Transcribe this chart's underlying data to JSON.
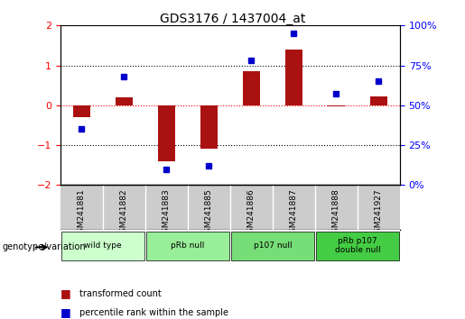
{
  "title": "GDS3176 / 1437004_at",
  "samples": [
    "GSM241881",
    "GSM241882",
    "GSM241883",
    "GSM241885",
    "GSM241886",
    "GSM241887",
    "GSM241888",
    "GSM241927"
  ],
  "transformed_counts": [
    -0.3,
    0.2,
    -1.4,
    -1.1,
    0.85,
    1.4,
    -0.02,
    0.22
  ],
  "percentile_ranks": [
    35,
    68,
    10,
    12,
    78,
    95,
    57,
    65
  ],
  "groups": [
    {
      "label": "wild type",
      "start": 0,
      "end": 2,
      "color": "#ccffcc"
    },
    {
      "label": "pRb null",
      "start": 2,
      "end": 4,
      "color": "#99ee99"
    },
    {
      "label": "p107 null",
      "start": 4,
      "end": 6,
      "color": "#77dd77"
    },
    {
      "label": "pRb p107\ndouble null",
      "start": 6,
      "end": 8,
      "color": "#44cc44"
    }
  ],
  "bar_color": "#aa1111",
  "dot_color": "#0000cc",
  "left_ylim": [
    -2,
    2
  ],
  "right_ylim": [
    0,
    100
  ],
  "left_yticks": [
    -2,
    -1,
    0,
    1,
    2
  ],
  "right_yticks": [
    0,
    25,
    50,
    75,
    100
  ],
  "right_yticklabels": [
    "0%",
    "25%",
    "50%",
    "75%",
    "100%"
  ],
  "dotted_lines": [
    -1,
    1
  ],
  "background_header": "#cccccc",
  "legend_items": [
    "transformed count",
    "percentile rank within the sample"
  ]
}
